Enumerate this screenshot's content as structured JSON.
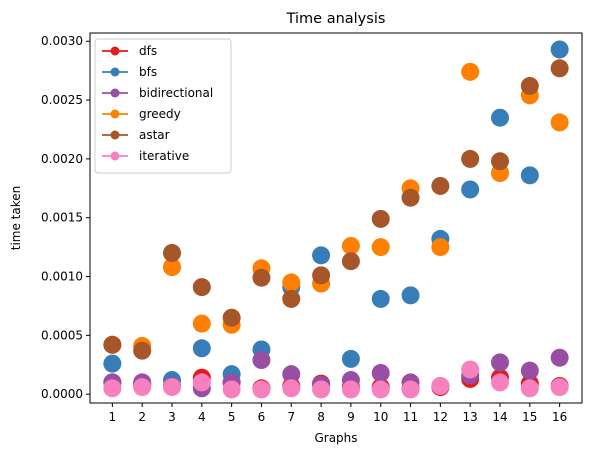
{
  "chart_data": {
    "type": "scatter",
    "title": "Time analysis",
    "xlabel": "Graphs",
    "ylabel": "time taken",
    "x": [
      1,
      2,
      3,
      4,
      5,
      6,
      7,
      8,
      9,
      10,
      11,
      12,
      13,
      14,
      15,
      16
    ],
    "xticks": [
      "1",
      "2",
      "3",
      "4",
      "5",
      "6",
      "7",
      "8",
      "9",
      "10",
      "11",
      "12",
      "13",
      "14",
      "15",
      "16"
    ],
    "yticks": [
      "0.0000",
      "0.0005",
      "0.0010",
      "0.0015",
      "0.0020",
      "0.0025",
      "0.0030"
    ],
    "ytick_values": [
      0,
      0.0005,
      0.001,
      0.0015,
      0.002,
      0.0025,
      0.003
    ],
    "xlim": [
      0.25,
      16.75
    ],
    "ylim": [
      -7.5e-05,
      0.00307
    ],
    "grid": false,
    "legend_position": "top-left",
    "series": [
      {
        "name": "dfs",
        "color": "#e41a1c",
        "values": [
          0.0001,
          8e-05,
          7e-05,
          0.00014,
          0.0001,
          5e-05,
          7e-05,
          9e-05,
          6e-05,
          6e-05,
          5e-05,
          6e-05,
          0.00013,
          0.00014,
          9e-05,
          7e-05
        ]
      },
      {
        "name": "bfs",
        "color": "#377eb8",
        "values": [
          0.00026,
          9e-05,
          0.00012,
          0.00039,
          0.00017,
          0.00038,
          0.00091,
          0.00118,
          0.0003,
          0.00081,
          0.00084,
          0.00132,
          0.00174,
          0.00235,
          0.00186,
          0.00293
        ]
      },
      {
        "name": "bidirectional",
        "color": "#984ea3",
        "values": [
          0.0001,
          0.0001,
          7e-05,
          5e-05,
          0.0001,
          0.00029,
          0.00017,
          8e-05,
          0.00012,
          0.00018,
          0.0001,
          7e-05,
          0.00016,
          0.00027,
          0.0002,
          0.00031
        ]
      },
      {
        "name": "greedy",
        "color": "#ff7f00",
        "values": [
          0.00042,
          0.00041,
          0.00108,
          0.0006,
          0.00059,
          0.00107,
          0.00095,
          0.00094,
          0.00126,
          0.00125,
          0.00175,
          0.00125,
          0.00274,
          0.00188,
          0.00254,
          0.00231
        ]
      },
      {
        "name": "astar",
        "color": "#a65628",
        "values": [
          0.00042,
          0.00037,
          0.0012,
          0.00091,
          0.00065,
          0.00099,
          0.00081,
          0.00101,
          0.00113,
          0.00149,
          0.00167,
          0.00177,
          0.002,
          0.00198,
          0.00262,
          0.00277
        ]
      },
      {
        "name": "iterative",
        "color": "#f781bf",
        "values": [
          5e-05,
          6e-05,
          6e-05,
          0.0001,
          4e-05,
          4e-05,
          5e-05,
          4e-05,
          4e-05,
          4e-05,
          4e-05,
          7e-05,
          0.00021,
          0.0001,
          5e-05,
          6e-05
        ]
      }
    ]
  }
}
